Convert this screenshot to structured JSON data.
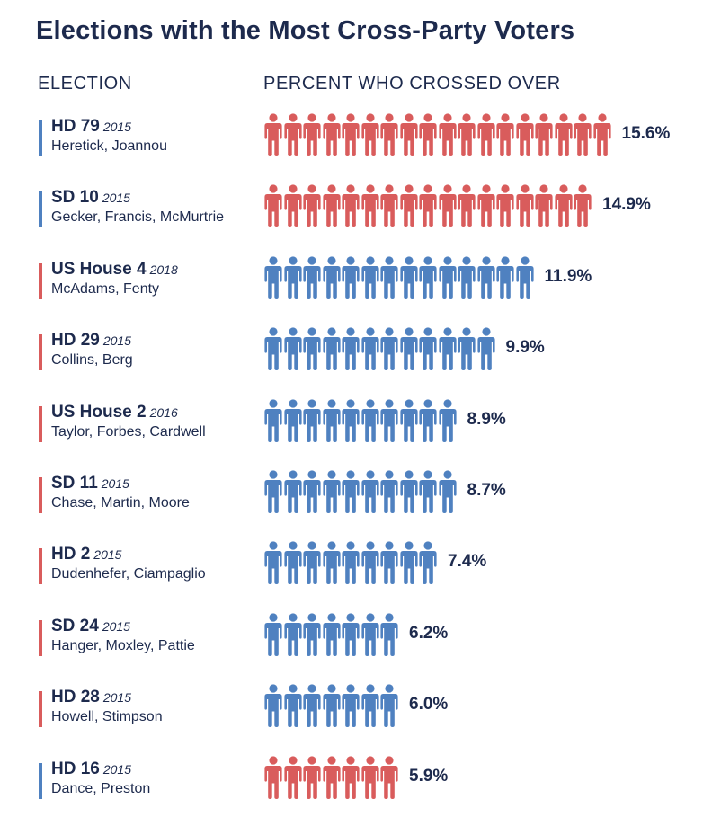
{
  "title": "Elections with the Most Cross-Party Voters",
  "columns": {
    "election": "ELECTION",
    "percent": "PERCENT WHO CROSSED OVER"
  },
  "colors": {
    "red": "#d95c5c",
    "blue": "#4f81c0",
    "text": "#1d2a4d"
  },
  "icon": "person-icon",
  "chart_data": {
    "type": "bar",
    "title": "Elections with the Most Cross-Party Voters",
    "xlabel": "ELECTION",
    "ylabel": "PERCENT WHO CROSSED OVER",
    "rows": [
      {
        "race": "HD 79",
        "year": "2015",
        "candidates": "Heretick, Joannou",
        "value": 15.6,
        "label": "15.6%",
        "icons": 18,
        "icon_color": "red",
        "marker_color": "blue"
      },
      {
        "race": "SD 10",
        "year": "2015",
        "candidates": "Gecker, Francis, McMurtrie",
        "value": 14.9,
        "label": "14.9%",
        "icons": 17,
        "icon_color": "red",
        "marker_color": "blue"
      },
      {
        "race": "US House 4",
        "year": "2018",
        "candidates": "McAdams, Fenty",
        "value": 11.9,
        "label": "11.9%",
        "icons": 14,
        "icon_color": "blue",
        "marker_color": "red"
      },
      {
        "race": "HD 29",
        "year": "2015",
        "candidates": "Collins, Berg",
        "value": 9.9,
        "label": "9.9%",
        "icons": 12,
        "icon_color": "blue",
        "marker_color": "red"
      },
      {
        "race": "US House 2",
        "year": "2016",
        "candidates": "Taylor, Forbes, Cardwell",
        "value": 8.9,
        "label": "8.9%",
        "icons": 10,
        "icon_color": "blue",
        "marker_color": "red"
      },
      {
        "race": "SD 11",
        "year": "2015",
        "candidates": "Chase, Martin, Moore",
        "value": 8.7,
        "label": "8.7%",
        "icons": 10,
        "icon_color": "blue",
        "marker_color": "red"
      },
      {
        "race": "HD 2",
        "year": "2015",
        "candidates": "Dudenhefer, Ciampaglio",
        "value": 7.4,
        "label": "7.4%",
        "icons": 9,
        "icon_color": "blue",
        "marker_color": "red"
      },
      {
        "race": "SD 24",
        "year": "2015",
        "candidates": "Hanger, Moxley, Pattie",
        "value": 6.2,
        "label": "6.2%",
        "icons": 7,
        "icon_color": "blue",
        "marker_color": "red"
      },
      {
        "race": "HD 28",
        "year": "2015",
        "candidates": "Howell, Stimpson",
        "value": 6.0,
        "label": "6.0%",
        "icons": 7,
        "icon_color": "blue",
        "marker_color": "red"
      },
      {
        "race": "HD 16",
        "year": "2015",
        "candidates": "Dance, Preston",
        "value": 5.9,
        "label": "5.9%",
        "icons": 7,
        "icon_color": "red",
        "marker_color": "blue"
      }
    ]
  }
}
